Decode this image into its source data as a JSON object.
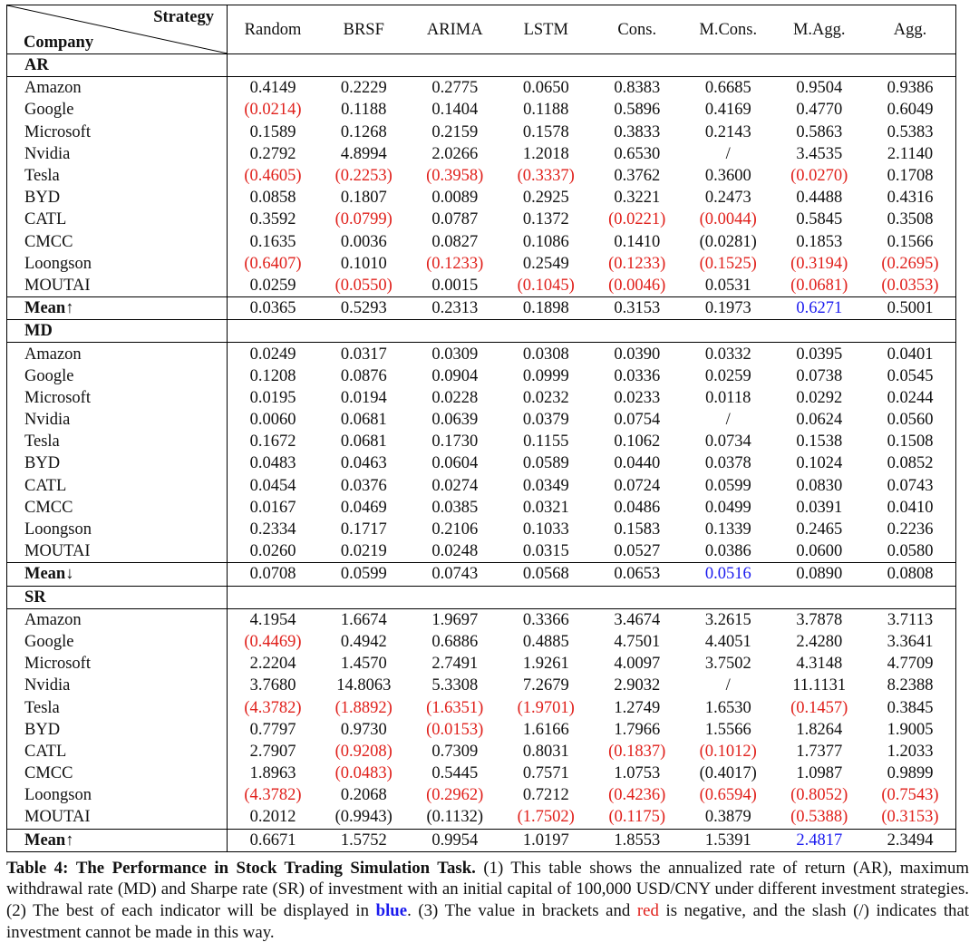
{
  "table": {
    "corner_top": "Strategy",
    "corner_bottom": "Company",
    "columns": [
      "Random",
      "BRSF",
      "ARIMA",
      "LSTM",
      "Cons.",
      "M.Cons.",
      "M.Agg.",
      "Agg."
    ],
    "colors": {
      "negative": "#e0201b",
      "best": "#1a1aee"
    },
    "sections": [
      {
        "name": "AR",
        "rows": [
          {
            "company": "Amazon",
            "values": [
              "0.4149",
              "0.2229",
              "0.2775",
              "0.0650",
              "0.8383",
              "0.6685",
              "0.9504",
              "0.9386"
            ]
          },
          {
            "company": "Google",
            "values": [
              "(0.0214)",
              "0.1188",
              "0.1404",
              "0.1188",
              "0.5896",
              "0.4169",
              "0.4770",
              "0.6049"
            ]
          },
          {
            "company": "Microsoft",
            "values": [
              "0.1589",
              "0.1268",
              "0.2159",
              "0.1578",
              "0.3833",
              "0.2143",
              "0.5863",
              "0.5383"
            ]
          },
          {
            "company": "Nvidia",
            "values": [
              "0.2792",
              "4.8994",
              "2.0266",
              "1.2018",
              "0.6530",
              "/",
              "3.4535",
              "2.1140"
            ]
          },
          {
            "company": "Tesla",
            "values": [
              "(0.4605)",
              "(0.2253)",
              "(0.3958)",
              "(0.3337)",
              "0.3762",
              "0.3600",
              "(0.0270)",
              "0.1708"
            ]
          },
          {
            "company": "BYD",
            "values": [
              "0.0858",
              "0.1807",
              "0.0089",
              "0.2925",
              "0.3221",
              "0.2473",
              "0.4488",
              "0.4316"
            ]
          },
          {
            "company": "CATL",
            "values": [
              "0.3592",
              "(0.0799)",
              "0.0787",
              "0.1372",
              "(0.0221)",
              "(0.0044)",
              "0.5845",
              "0.3508"
            ]
          },
          {
            "company": "CMCC",
            "values": [
              "0.1635",
              "0.0036",
              "0.0827",
              "0.1086",
              "0.1410",
              "(0.0281)",
              "0.1853",
              "0.1566"
            ],
            "black_negatives": [
              5
            ]
          },
          {
            "company": "Loongson",
            "values": [
              "(0.6407)",
              "0.1010",
              "(0.1233)",
              "0.2549",
              "(0.1233)",
              "(0.1525)",
              "(0.3194)",
              "(0.2695)"
            ]
          },
          {
            "company": "MOUTAI",
            "values": [
              "0.0259",
              "(0.0550)",
              "0.0015",
              "(0.1045)",
              "(0.0046)",
              "0.0531",
              "(0.0681)",
              "(0.0353)"
            ]
          }
        ],
        "mean_label": "Mean↑",
        "mean": [
          "0.0365",
          "0.5293",
          "0.2313",
          "0.1898",
          "0.3153",
          "0.1973",
          "0.6271",
          "0.5001"
        ],
        "best_index": 6
      },
      {
        "name": "MD",
        "rows": [
          {
            "company": "Amazon",
            "values": [
              "0.0249",
              "0.0317",
              "0.0309",
              "0.0308",
              "0.0390",
              "0.0332",
              "0.0395",
              "0.0401"
            ]
          },
          {
            "company": "Google",
            "values": [
              "0.1208",
              "0.0876",
              "0.0904",
              "0.0999",
              "0.0336",
              "0.0259",
              "0.0738",
              "0.0545"
            ]
          },
          {
            "company": "Microsoft",
            "values": [
              "0.0195",
              "0.0194",
              "0.0228",
              "0.0232",
              "0.0233",
              "0.0118",
              "0.0292",
              "0.0244"
            ]
          },
          {
            "company": "Nvidia",
            "values": [
              "0.0060",
              "0.0681",
              "0.0639",
              "0.0379",
              "0.0754",
              "/",
              "0.0624",
              "0.0560"
            ]
          },
          {
            "company": "Tesla",
            "values": [
              "0.1672",
              "0.0681",
              "0.1730",
              "0.1155",
              "0.1062",
              "0.0734",
              "0.1538",
              "0.1508"
            ]
          },
          {
            "company": "BYD",
            "values": [
              "0.0483",
              "0.0463",
              "0.0604",
              "0.0589",
              "0.0440",
              "0.0378",
              "0.1024",
              "0.0852"
            ]
          },
          {
            "company": "CATL",
            "values": [
              "0.0454",
              "0.0376",
              "0.0274",
              "0.0349",
              "0.0724",
              "0.0599",
              "0.0830",
              "0.0743"
            ]
          },
          {
            "company": "CMCC",
            "values": [
              "0.0167",
              "0.0469",
              "0.0385",
              "0.0321",
              "0.0486",
              "0.0499",
              "0.0391",
              "0.0410"
            ]
          },
          {
            "company": "Loongson",
            "values": [
              "0.2334",
              "0.1717",
              "0.2106",
              "0.1033",
              "0.1583",
              "0.1339",
              "0.2465",
              "0.2236"
            ]
          },
          {
            "company": "MOUTAI",
            "values": [
              "0.0260",
              "0.0219",
              "0.0248",
              "0.0315",
              "0.0527",
              "0.0386",
              "0.0600",
              "0.0580"
            ]
          }
        ],
        "mean_label": "Mean↓",
        "mean": [
          "0.0708",
          "0.0599",
          "0.0743",
          "0.0568",
          "0.0653",
          "0.0516",
          "0.0890",
          "0.0808"
        ],
        "best_index": 5
      },
      {
        "name": "SR",
        "rows": [
          {
            "company": "Amazon",
            "values": [
              "4.1954",
              "1.6674",
              "1.9697",
              "0.3366",
              "3.4674",
              "3.2615",
              "3.7878",
              "3.7113"
            ]
          },
          {
            "company": "Google",
            "values": [
              "(0.4469)",
              "0.4942",
              "0.6886",
              "0.4885",
              "4.7501",
              "4.4051",
              "2.4280",
              "3.3641"
            ]
          },
          {
            "company": "Microsoft",
            "values": [
              "2.2204",
              "1.4570",
              "2.7491",
              "1.9261",
              "4.0097",
              "3.7502",
              "4.3148",
              "4.7709"
            ]
          },
          {
            "company": "Nvidia",
            "values": [
              "3.7680",
              "14.8063",
              "5.3308",
              "7.2679",
              "2.9032",
              "/",
              "11.1131",
              "8.2388"
            ]
          },
          {
            "company": "Tesla",
            "values": [
              "(4.3782)",
              "(1.8892)",
              "(1.6351)",
              "(1.9701)",
              "1.2749",
              "1.6530",
              "(0.1457)",
              "0.3845"
            ]
          },
          {
            "company": "BYD",
            "values": [
              "0.7797",
              "0.9730",
              "(0.0153)",
              "1.6166",
              "1.7966",
              "1.5566",
              "1.8264",
              "1.9005"
            ]
          },
          {
            "company": "CATL",
            "values": [
              "2.7907",
              "(0.9208)",
              "0.7309",
              "0.8031",
              "(0.1837)",
              "(0.1012)",
              "1.7377",
              "1.2033"
            ]
          },
          {
            "company": "CMCC",
            "values": [
              "1.8963",
              "(0.0483)",
              "0.5445",
              "0.7571",
              "1.0753",
              "(0.4017)",
              "1.0987",
              "0.9899"
            ],
            "black_negatives": [
              5
            ]
          },
          {
            "company": "Loongson",
            "values": [
              "(4.3782)",
              "0.2068",
              "(0.2962)",
              "0.7212",
              "(0.4236)",
              "(0.6594)",
              "(0.8052)",
              "(0.7543)"
            ]
          },
          {
            "company": "MOUTAI",
            "values": [
              "0.2012",
              "(0.9943)",
              "(0.1132)",
              "(1.7502)",
              "(0.1175)",
              "0.3879",
              "(0.5388)",
              "(0.3153)"
            ],
            "black_negatives": [
              1,
              2
            ]
          }
        ],
        "mean_label": "Mean↑",
        "mean": [
          "0.6671",
          "1.5752",
          "0.9954",
          "1.0197",
          "1.8553",
          "1.5391",
          "2.4817",
          "2.3494"
        ],
        "best_index": 6
      }
    ]
  },
  "caption": {
    "label": "Table 4:",
    "title": "The Performance in Stock Trading Simulation Task.",
    "part1": " (1) This table shows the annualized rate of return (AR), maximum withdrawal rate (MD) and Sharpe rate (SR) of investment with an initial capital of 100,000 USD/CNY under different investment strategies. (2) The best of each indicator will be displayed in ",
    "blue_word": "blue",
    "part2": ". (3) The value in brackets and ",
    "red_word": "red",
    "part3": " is negative, and the slash (/) indicates that investment cannot be made in this way."
  }
}
